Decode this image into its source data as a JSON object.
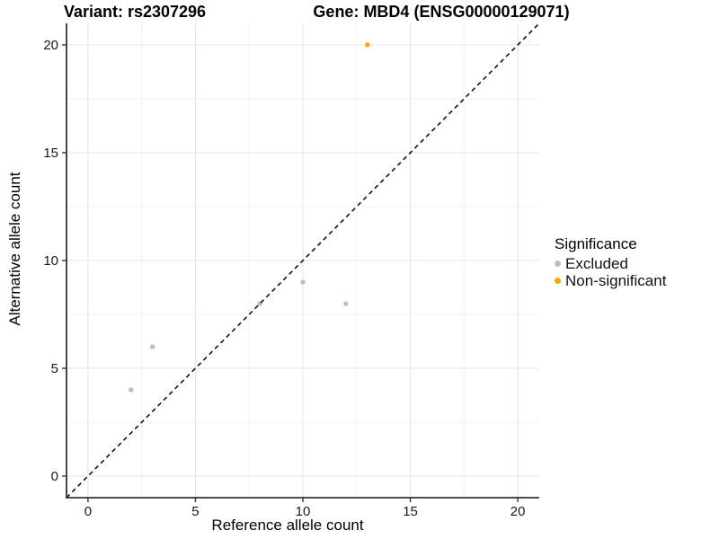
{
  "chart_data": {
    "type": "scatter",
    "title_variant": "Variant: rs2307296",
    "title_gene": "Gene: MBD4 (ENSG00000129071)",
    "xlabel": "Reference allele count",
    "ylabel": "Alternative allele count",
    "xlim": [
      -1,
      21
    ],
    "ylim": [
      -1,
      21
    ],
    "x_ticks": [
      0,
      5,
      10,
      15,
      20
    ],
    "y_ticks": [
      0,
      5,
      10,
      15,
      20
    ],
    "x_minor_ticks": [
      2.5,
      7.5,
      12.5,
      17.5
    ],
    "y_minor_ticks": [
      2.5,
      7.5,
      12.5,
      17.5
    ],
    "grid": true,
    "legend": {
      "title": "Significance",
      "position": "right"
    },
    "identity_line": {
      "slope": 1,
      "intercept": 0,
      "style": "dashed",
      "color": "#111111"
    },
    "series": [
      {
        "name": "Excluded",
        "color": "#BEBEBE",
        "points": [
          [
            2,
            4
          ],
          [
            3,
            6
          ],
          [
            8,
            8
          ],
          [
            10,
            9
          ],
          [
            12,
            8
          ]
        ]
      },
      {
        "name": "Non-significant",
        "color": "#FFA500",
        "points": [
          [
            13,
            20
          ]
        ]
      }
    ],
    "style_colors": {
      "axis_line": "#333333",
      "major_grid": "#e4e4e4",
      "minor_grid": "#f2f2f2",
      "tick_label": "#1a1a1a"
    }
  }
}
